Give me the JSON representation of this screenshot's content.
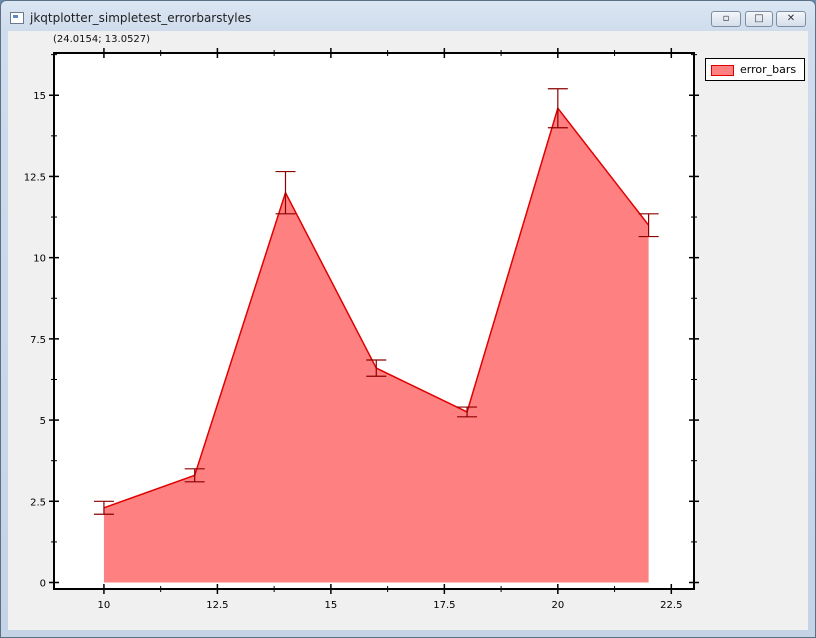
{
  "window": {
    "title": "jkqtplotter_simpletest_errorbarstyles",
    "controls": {
      "minimize_icon": "minimize-icon",
      "maximize_icon": "maximize-icon",
      "close_icon": "close-icon"
    }
  },
  "cursor_readout": "(24.0154; 13.0527)",
  "chart_data": {
    "type": "area",
    "x": [
      10,
      12,
      14,
      16,
      18,
      20,
      22
    ],
    "series": [
      {
        "name": "error_bars",
        "values": [
          2.3,
          3.3,
          12.0,
          6.6,
          5.25,
          14.6,
          11.0
        ],
        "errors": [
          0.2,
          0.2,
          0.65,
          0.25,
          0.15,
          0.6,
          0.35
        ],
        "fill_color": "#ff8080",
        "line_color": "#e00000",
        "error_color": "#8b0000"
      }
    ],
    "xlim": [
      8.9,
      23.0
    ],
    "ylim": [
      -0.2,
      16.3
    ],
    "xticks": [
      10,
      12.5,
      15,
      17.5,
      20,
      22.5
    ],
    "xtick_labels": [
      "10",
      "12.5",
      "15",
      "17.5",
      "20",
      "22.5"
    ],
    "yticks": [
      0,
      2.5,
      5,
      7.5,
      10,
      12.5,
      15
    ],
    "ytick_labels": [
      "0",
      "2.5",
      "5",
      "7.5",
      "10",
      "12.5",
      "15"
    ],
    "grid": false,
    "legend": {
      "position": "top-right-outside",
      "entries": [
        "error_bars"
      ]
    }
  }
}
